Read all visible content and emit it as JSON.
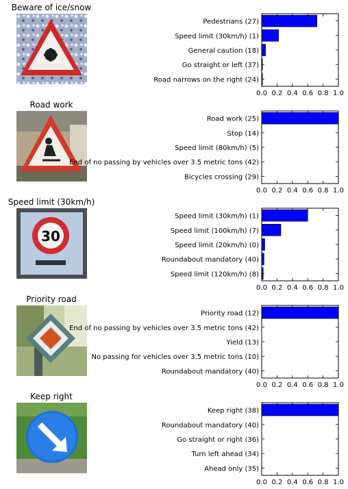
{
  "colors": {
    "bar": "#0000ff",
    "bar_edge": "#000000",
    "axes": "#000000",
    "background": "#ffffff"
  },
  "panels": [
    {
      "title": "Beware of ice/snow",
      "icon": "warning-triangle-snowflake-sign"
    },
    {
      "title": "Road work",
      "icon": "warning-triangle-road-work-sign"
    },
    {
      "title": "Speed limit (30km/h)",
      "icon": "speed-limit-30-sign"
    },
    {
      "title": "Priority road",
      "icon": "priority-road-diamond-sign"
    },
    {
      "title": "Keep right",
      "icon": "keep-right-arrow-sign"
    }
  ],
  "chart_data": [
    {
      "type": "bar",
      "orientation": "horizontal",
      "categories": [
        "Pedestrians (27)",
        "Speed limit (30km/h) (1)",
        "General caution (18)",
        "Go straight or left (37)",
        "Road narrows on the right (24)"
      ],
      "values": [
        0.72,
        0.22,
        0.05,
        0.01,
        0.01
      ],
      "xlim": [
        0,
        1.0
      ],
      "xticks": [
        "0.0",
        "0.2",
        "0.4",
        "0.6",
        "0.8",
        "1.0"
      ],
      "grid": false
    },
    {
      "type": "bar",
      "orientation": "horizontal",
      "categories": [
        "Road work (25)",
        "Stop (14)",
        "Speed limit (80km/h) (5)",
        "End of no passing by vehicles over 3.5 metric tons (42)",
        "Bicycles crossing (29)"
      ],
      "values": [
        1.0,
        0.0,
        0.0,
        0.0,
        0.0
      ],
      "xlim": [
        0,
        1.0
      ],
      "xticks": [
        "0.0",
        "0.2",
        "0.4",
        "0.6",
        "0.8",
        "1.0"
      ],
      "grid": false
    },
    {
      "type": "bar",
      "orientation": "horizontal",
      "categories": [
        "Speed limit (30km/h) (1)",
        "Speed limit (100km/h) (7)",
        "Speed limit (20km/h) (0)",
        "Roundabout mandatory (40)",
        "Speed limit (120km/h) (8)"
      ],
      "values": [
        0.6,
        0.25,
        0.04,
        0.03,
        0.02
      ],
      "xlim": [
        0,
        1.0
      ],
      "xticks": [
        "0.0",
        "0.2",
        "0.4",
        "0.6",
        "0.8",
        "1.0"
      ],
      "grid": false
    },
    {
      "type": "bar",
      "orientation": "horizontal",
      "categories": [
        "Priority road (12)",
        "End of no passing by vehicles over 3.5 metric tons (42)",
        "Yield (13)",
        "No passing for vehicles over 3.5 metric tons (10)",
        "Roundabout mandatory (40)"
      ],
      "values": [
        1.0,
        0.0,
        0.0,
        0.0,
        0.0
      ],
      "xlim": [
        0,
        1.0
      ],
      "xticks": [
        "0.0",
        "0.2",
        "0.4",
        "0.6",
        "0.8",
        "1.0"
      ],
      "grid": false
    },
    {
      "type": "bar",
      "orientation": "horizontal",
      "categories": [
        "Keep right (38)",
        "Roundabout mandatory (40)",
        "Go straight or right (36)",
        "Turn left ahead (34)",
        "Ahead only (35)"
      ],
      "values": [
        1.0,
        0.0,
        0.0,
        0.0,
        0.0
      ],
      "xlim": [
        0,
        1.0
      ],
      "xticks": [
        "0.0",
        "0.2",
        "0.4",
        "0.6",
        "0.8",
        "1.0"
      ],
      "grid": false
    }
  ]
}
